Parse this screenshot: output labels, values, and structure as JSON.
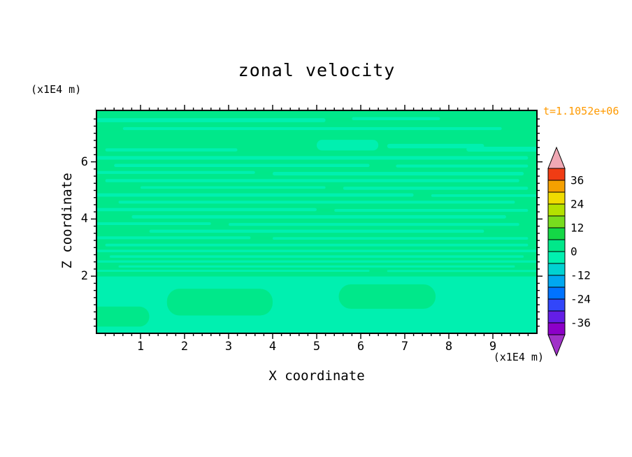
{
  "chart_data": {
    "type": "filled-contour",
    "title": "zonal velocity",
    "time_annotation": "t=1.1052e+06",
    "time_annotation_color": "#ff9a00",
    "xlabel": "X coordinate",
    "ylabel": "Z coordinate",
    "x_axis_unit": "(x1E4 m)",
    "z_axis_unit": "(x1E4 m)",
    "x_range": [
      0,
      10
    ],
    "z_range": [
      0,
      7.8
    ],
    "x_major_ticks": [
      1,
      2,
      3,
      4,
      5,
      6,
      7,
      8,
      9
    ],
    "z_major_ticks": [
      2,
      4,
      6
    ],
    "x_minor_step": 0.2,
    "z_minor_step": 0.25,
    "grid": false,
    "colorbar": {
      "levels": [
        -42,
        -36,
        -30,
        -24,
        -18,
        -12,
        -6,
        0,
        6,
        12,
        18,
        24,
        30,
        36,
        42
      ],
      "band_colors": [
        "#8c00c8",
        "#641ee6",
        "#3246fa",
        "#0073ff",
        "#00a8f0",
        "#00d2d2",
        "#00f0b0",
        "#00e88a",
        "#14d746",
        "#78dc1e",
        "#b4e100",
        "#f0dc00",
        "#f5a000",
        "#f03c14"
      ],
      "label_values": [
        36,
        24,
        12,
        0,
        -12,
        -24,
        -36
      ],
      "over_color": "#f0a8b4",
      "under_color": "#a032c8"
    },
    "field": {
      "base_color": "#00e88a",
      "alt_color": "#00f0b0",
      "description": "zonal velocity close to 0 everywhere; thin horizontal streak contours of the adjacent -6..0 band over the 0..6 band, smooth region below z=2",
      "streaks": [
        [
          0.0,
          0.035,
          0.52,
          0.018
        ],
        [
          0.58,
          0.03,
          0.2,
          0.014
        ],
        [
          0.06,
          0.075,
          0.86,
          0.013
        ],
        [
          0.5,
          0.132,
          0.14,
          0.048
        ],
        [
          0.66,
          0.15,
          0.22,
          0.02
        ],
        [
          0.84,
          0.163,
          0.16,
          0.022
        ],
        [
          0.02,
          0.17,
          0.3,
          0.014
        ],
        [
          0.0,
          0.205,
          0.98,
          0.016
        ],
        [
          0.04,
          0.24,
          0.58,
          0.014
        ],
        [
          0.68,
          0.243,
          0.3,
          0.013
        ],
        [
          0.0,
          0.272,
          0.36,
          0.013
        ],
        [
          0.4,
          0.276,
          0.57,
          0.016
        ],
        [
          0.02,
          0.308,
          0.94,
          0.014
        ],
        [
          0.1,
          0.34,
          0.42,
          0.012
        ],
        [
          0.56,
          0.342,
          0.42,
          0.014
        ],
        [
          0.0,
          0.372,
          0.72,
          0.015
        ],
        [
          0.76,
          0.376,
          0.24,
          0.012
        ],
        [
          0.05,
          0.405,
          0.9,
          0.013
        ],
        [
          0.0,
          0.438,
          0.5,
          0.014
        ],
        [
          0.54,
          0.442,
          0.44,
          0.013
        ],
        [
          0.08,
          0.47,
          0.85,
          0.015
        ],
        [
          0.0,
          0.502,
          0.26,
          0.012
        ],
        [
          0.3,
          0.505,
          0.66,
          0.013
        ],
        [
          0.12,
          0.535,
          0.76,
          0.014
        ],
        [
          0.0,
          0.565,
          0.35,
          0.013
        ],
        [
          0.4,
          0.568,
          0.58,
          0.012
        ],
        [
          0.02,
          0.598,
          0.96,
          0.012
        ],
        [
          0.0,
          0.625,
          1.0,
          0.011
        ],
        [
          0.03,
          0.65,
          0.94,
          0.011
        ],
        [
          0.0,
          0.673,
          1.0,
          0.01
        ],
        [
          0.05,
          0.695,
          0.9,
          0.01
        ],
        [
          0.0,
          0.715,
          0.62,
          0.009
        ],
        [
          0.66,
          0.716,
          0.34,
          0.009
        ],
        [
          -0.02,
          0.745,
          1.04,
          0.255
        ],
        [
          0.16,
          0.8,
          0.24,
          0.12,
          1
        ],
        [
          0.55,
          0.78,
          0.22,
          0.11,
          1
        ],
        [
          0.0,
          0.88,
          0.12,
          0.09,
          1
        ]
      ]
    }
  }
}
